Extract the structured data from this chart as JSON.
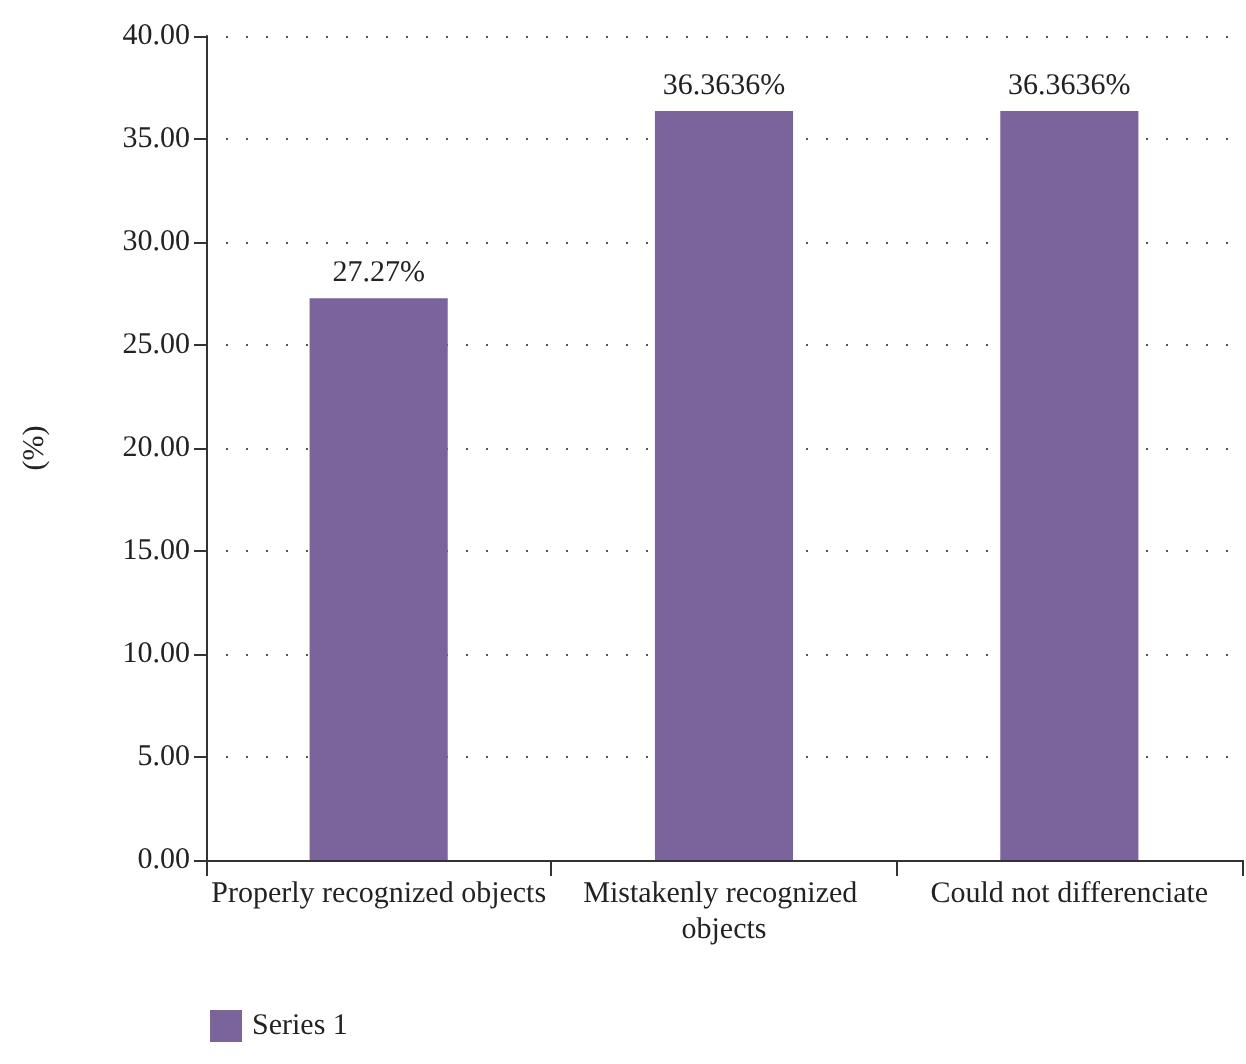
{
  "chart_data": {
    "type": "bar",
    "ylabel": "(%)",
    "categories": [
      "Properly recognized objects",
      "Mistakenly recognized objects",
      "Could not differenciate"
    ],
    "series": [
      {
        "name": "Series 1",
        "color": "#7b649b",
        "values": [
          27.27,
          36.3636,
          36.3636
        ],
        "value_labels": [
          "27.27%",
          "36.3636%",
          "36.3636%"
        ]
      }
    ],
    "ylim": [
      0,
      40
    ],
    "yticks": [
      {
        "value": 0,
        "label": "0.00"
      },
      {
        "value": 5,
        "label": "5.00"
      },
      {
        "value": 10,
        "label": "10.00"
      },
      {
        "value": 15,
        "label": "15.00"
      },
      {
        "value": 20,
        "label": "20.00"
      },
      {
        "value": 25,
        "label": "25.00"
      },
      {
        "value": 30,
        "label": "30.00"
      },
      {
        "value": 35,
        "label": "35.00"
      },
      {
        "value": 40,
        "label": "40.00"
      }
    ],
    "grid": "y",
    "legend": "bottom left"
  }
}
